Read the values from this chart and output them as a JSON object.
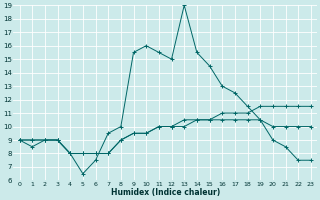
{
  "xlabel": "Humidex (Indice chaleur)",
  "background_color": "#cceaea",
  "line_color": "#006666",
  "x_values": [
    0,
    1,
    2,
    3,
    4,
    5,
    6,
    7,
    8,
    9,
    10,
    11,
    12,
    13,
    14,
    15,
    16,
    17,
    18,
    19,
    20,
    21,
    22,
    23
  ],
  "series1": [
    9.0,
    8.5,
    9.0,
    9.0,
    8.0,
    6.5,
    7.5,
    9.5,
    10.0,
    15.5,
    16.0,
    15.5,
    15.0,
    19.0,
    15.5,
    14.5,
    13.0,
    12.5,
    11.5,
    10.5,
    9.0,
    8.5,
    7.5,
    7.5
  ],
  "series2": [
    9.0,
    9.0,
    9.0,
    9.0,
    8.0,
    8.0,
    8.0,
    8.0,
    9.0,
    9.5,
    9.5,
    10.0,
    10.0,
    10.5,
    10.5,
    10.5,
    11.0,
    11.0,
    11.0,
    11.5,
    11.5,
    11.5,
    11.5,
    11.5
  ],
  "series3": [
    9.0,
    9.0,
    9.0,
    9.0,
    8.0,
    8.0,
    8.0,
    8.0,
    9.0,
    9.5,
    9.5,
    10.0,
    10.0,
    10.0,
    10.5,
    10.5,
    10.5,
    10.5,
    10.5,
    10.5,
    10.0,
    10.0,
    10.0,
    10.0
  ],
  "ylim": [
    6,
    19
  ],
  "xlim": [
    -0.5,
    23.5
  ],
  "yticks": [
    6,
    7,
    8,
    9,
    10,
    11,
    12,
    13,
    14,
    15,
    16,
    17,
    18,
    19
  ],
  "xticks": [
    0,
    1,
    2,
    3,
    4,
    5,
    6,
    7,
    8,
    9,
    10,
    11,
    12,
    13,
    14,
    15,
    16,
    17,
    18,
    19,
    20,
    21,
    22,
    23
  ]
}
